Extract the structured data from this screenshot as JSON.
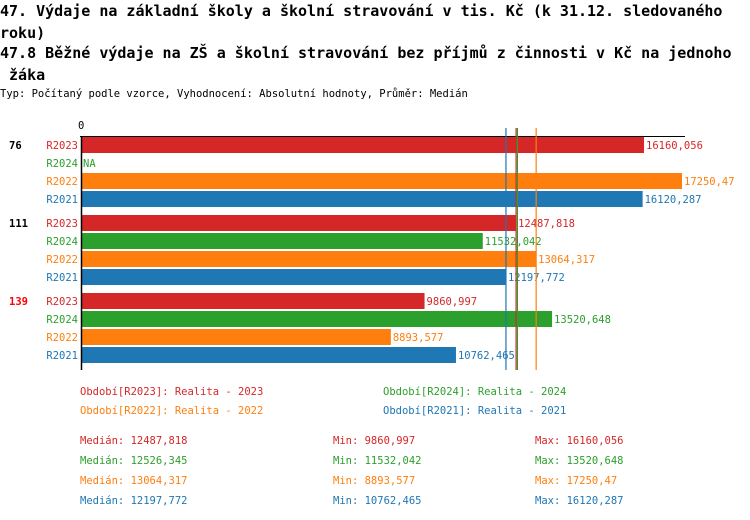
{
  "title_line1": "47. Výdaje na základní školy a školní stravování v tis. Kč (k 31.12. sledovaného",
  "title_line2": "roku)",
  "subtitle_line1": "47.8 Běžné výdaje na ZŠ a školní stravování bez příjmů z činnosti v Kč na jednoho",
  "subtitle_line2": " žáka",
  "info": "Typ: Počítaný podle vzorce, Vyhodnocení: Absolutní hodnoty, Průměr: Medián",
  "colors": {
    "R2023": "#d62728",
    "R2024": "#2ca02c",
    "R2022": "#ff7f0e",
    "R2021": "#1f77b4",
    "highlight": "#ff0000"
  },
  "chart_data": {
    "type": "bar",
    "orientation": "horizontal",
    "x_tick_label": "0",
    "xlim": [
      0,
      17250.47
    ],
    "groups": [
      {
        "label": "76",
        "highlight": false,
        "bars": [
          {
            "series": "R2023",
            "value": 16160.056,
            "label": "16160,056"
          },
          {
            "series": "R2024",
            "value": null,
            "label": "NA"
          },
          {
            "series": "R2022",
            "value": 17250.47,
            "label": "17250,47"
          },
          {
            "series": "R2021",
            "value": 16120.287,
            "label": "16120,287"
          }
        ]
      },
      {
        "label": "111",
        "highlight": false,
        "bars": [
          {
            "series": "R2023",
            "value": 12487.818,
            "label": "12487,818"
          },
          {
            "series": "R2024",
            "value": 11532.042,
            "label": "11532,042"
          },
          {
            "series": "R2022",
            "value": 13064.317,
            "label": "13064,317"
          },
          {
            "series": "R2021",
            "value": 12197.772,
            "label": "12197,772"
          }
        ]
      },
      {
        "label": "139",
        "highlight": true,
        "bars": [
          {
            "series": "R2023",
            "value": 9860.997,
            "label": "9860,997"
          },
          {
            "series": "R2024",
            "value": 13520.648,
            "label": "13520,648"
          },
          {
            "series": "R2022",
            "value": 8893.577,
            "label": "8893,577"
          },
          {
            "series": "R2021",
            "value": 10762.465,
            "label": "10762,465"
          }
        ]
      }
    ],
    "median_lines": [
      {
        "series": "R2021",
        "value": 12197.772
      },
      {
        "series": "R2023",
        "value": 12487.818
      },
      {
        "series": "R2024",
        "value": 12526.345
      },
      {
        "series": "R2022",
        "value": 13064.317
      }
    ],
    "legend": [
      {
        "series": "R2023",
        "text": "Období[R2023]: Realita - 2023"
      },
      {
        "series": "R2024",
        "text": "Období[R2024]: Realita - 2024"
      },
      {
        "series": "R2022",
        "text": "Období[R2022]: Realita - 2022"
      },
      {
        "series": "R2021",
        "text": "Období[R2021]: Realita - 2021"
      }
    ],
    "stats": [
      {
        "series": "R2023",
        "median": "Medián: 12487,818",
        "min": "Min: 9860,997",
        "max": "Max: 16160,056"
      },
      {
        "series": "R2024",
        "median": "Medián: 12526,345",
        "min": "Min: 11532,042",
        "max": "Max: 13520,648"
      },
      {
        "series": "R2022",
        "median": "Medián: 13064,317",
        "min": "Min: 8893,577",
        "max": "Max: 17250,47"
      },
      {
        "series": "R2021",
        "median": "Medián: 12197,772",
        "min": "Min: 10762,465",
        "max": "Max: 16120,287"
      }
    ]
  }
}
